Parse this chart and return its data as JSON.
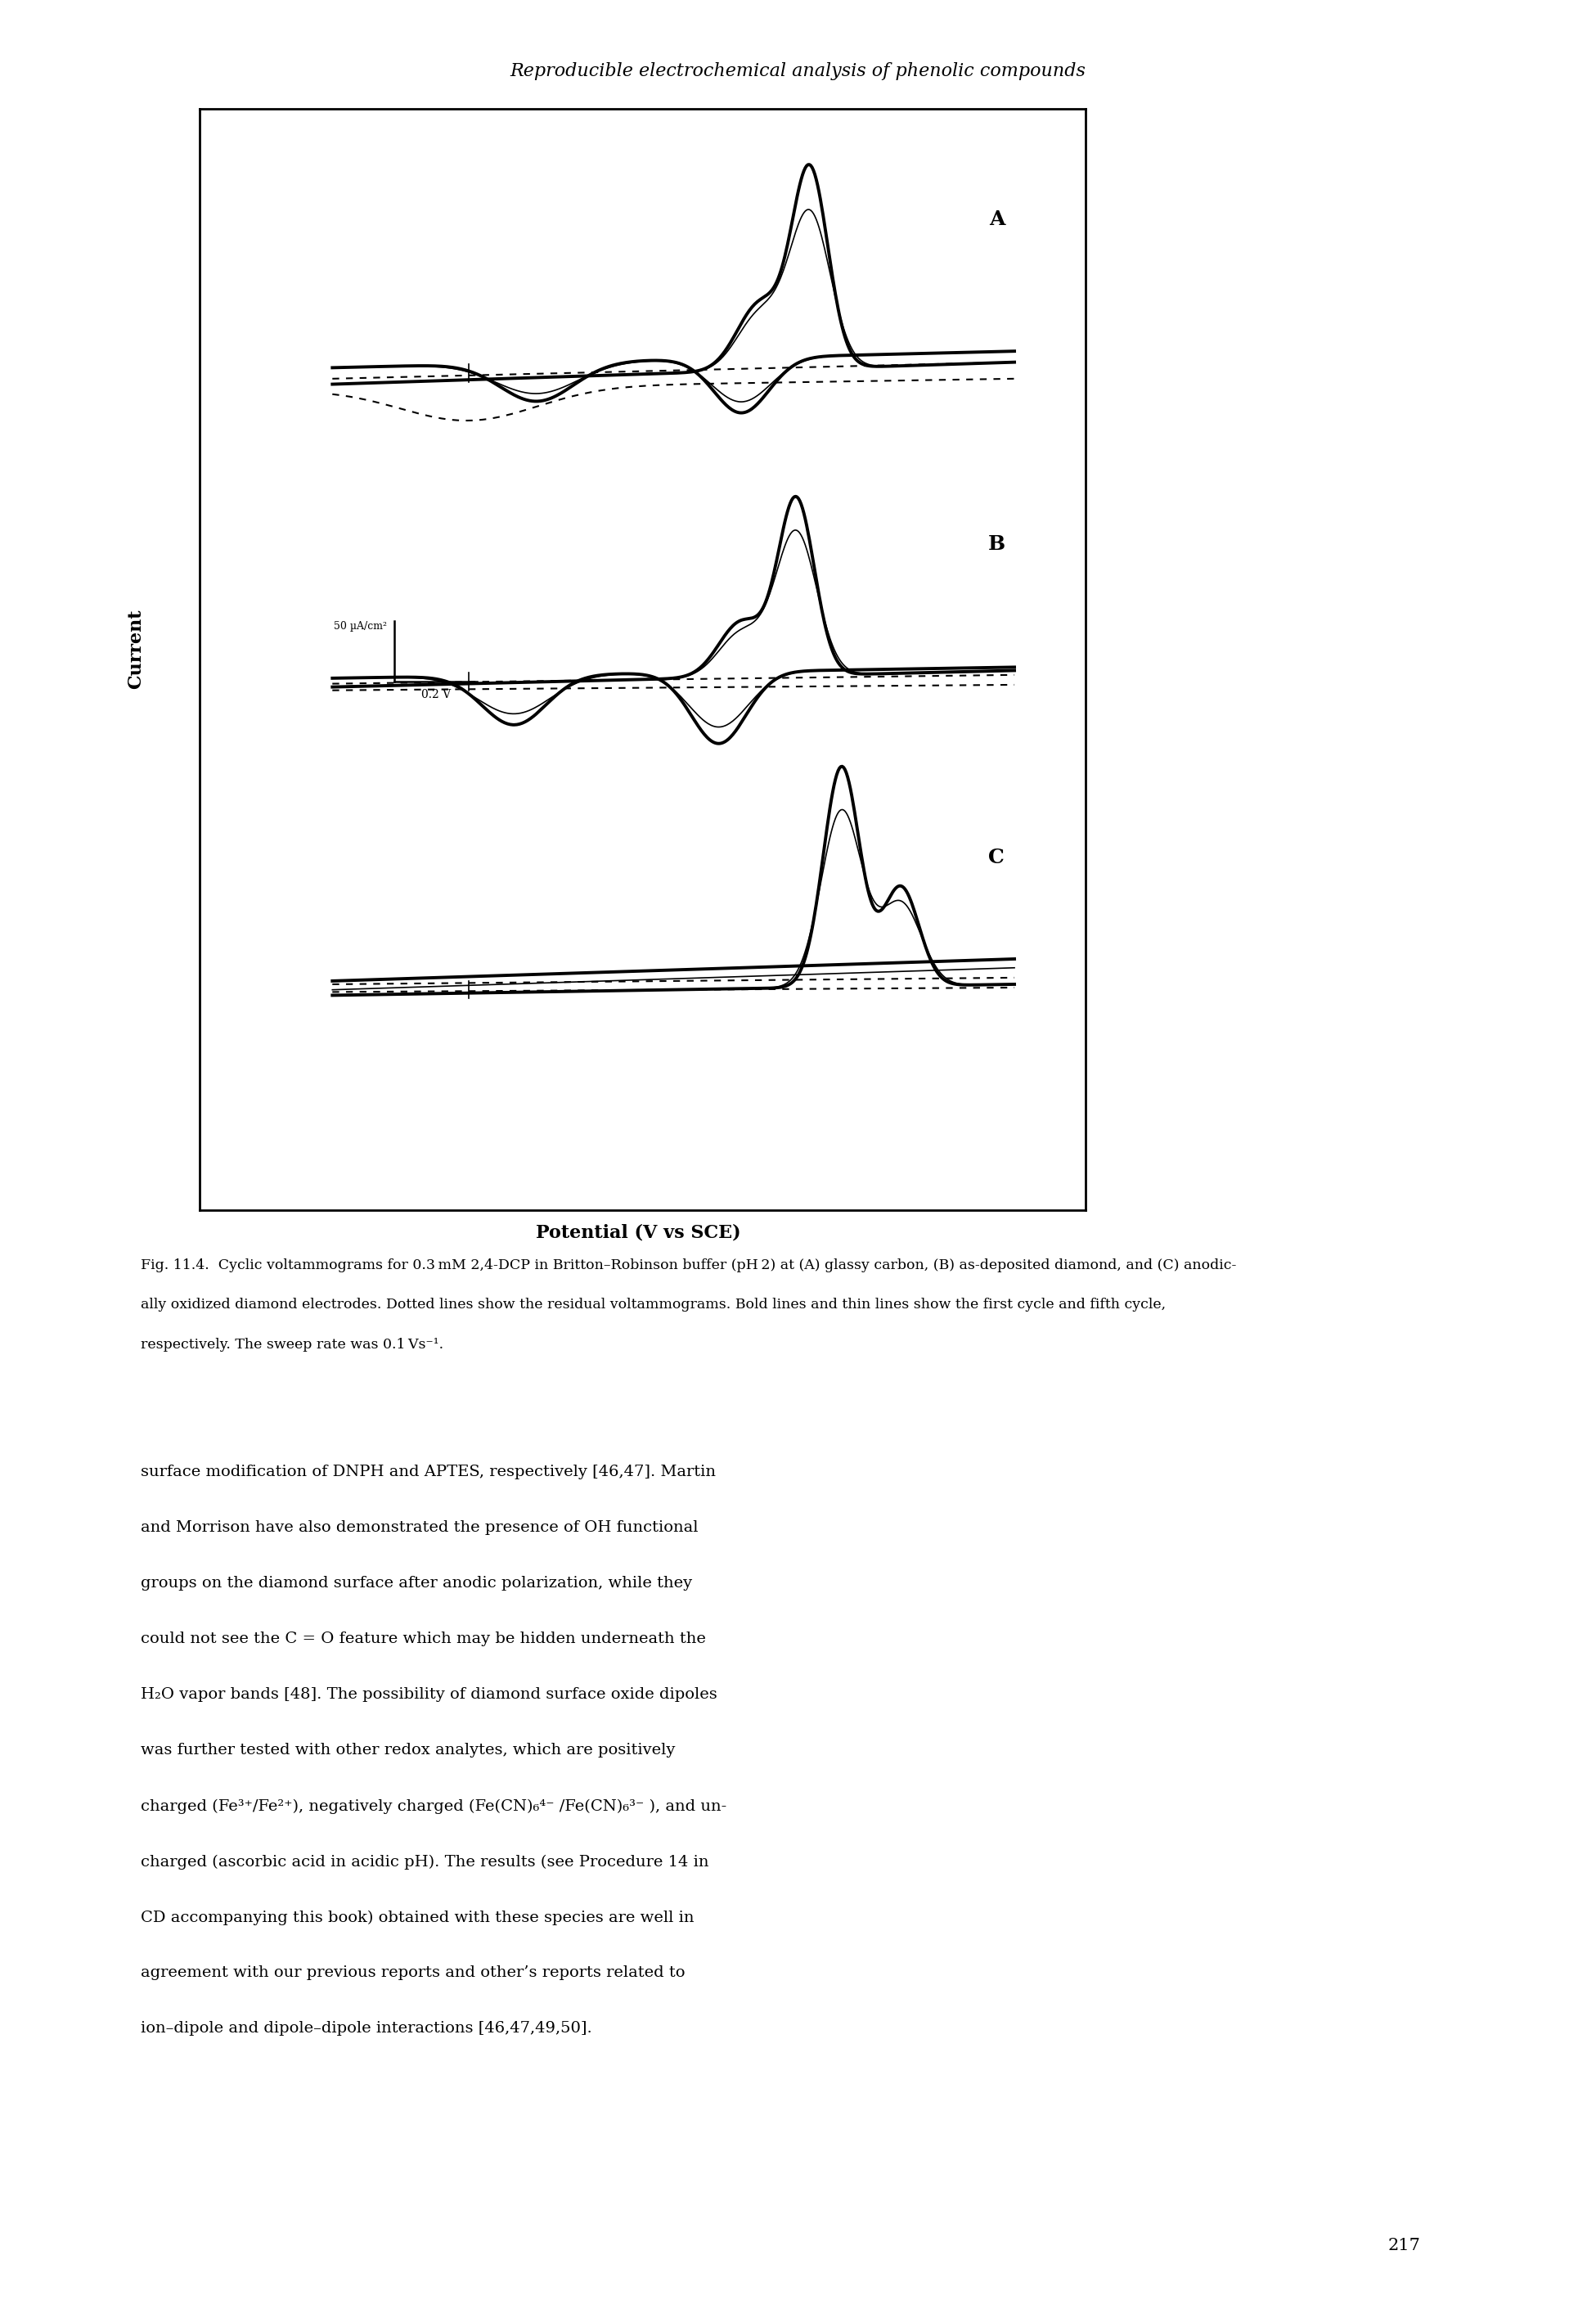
{
  "title_top": "Reproducible electrochemical analysis of phenolic compounds",
  "xlabel": "Potential (V vs SCE)",
  "ylabel": "Current",
  "scale_label_y": "50 μA/cm²",
  "scale_label_x": "0.2 V",
  "page_number": "217",
  "background_color": "#ffffff",
  "line_color": "#000000",
  "caption_lines": [
    "Fig. 11.4. Cyclic voltammograms for 0.3 mM 2,4-DCP in Britton–Robinson buffer (pH 2) at (A) glassy carbon, (B) as-deposited diamond, and (C) anodic-",
    "ally oxidized diamond electrodes. Dotted lines show the residual voltammograms. Bold lines and thin lines show the first cycle and fifth cycle,",
    "respectively. The sweep rate was 0.1 Vs⁻¹."
  ],
  "body_lines": [
    "surface modification of DNPH and APTES, respectively [46,47]. Martin",
    "and Morrison have also demonstrated the presence of OH functional",
    "groups on the diamond surface after anodic polarization, while they",
    "could not see the C = O feature which may be hidden underneath the",
    "H₂O vapor bands [48]. The possibility of diamond surface oxide dipoles",
    "was further tested with other redox analytes, which are positively",
    "charged (Fe³⁺/Fe²⁺), negatively charged (Fe(CN)₆⁴⁻ /Fe(CN)₆³⁻ ), and un-",
    "charged (ascorbic acid in acidic pH). The results (see Procedure 14 in",
    "CD accompanying this book) obtained with these species are well in",
    "agreement with our previous reports and other’s reports related to",
    "ion–dipole and dipole–dipole interactions [46,47,49,50]."
  ]
}
